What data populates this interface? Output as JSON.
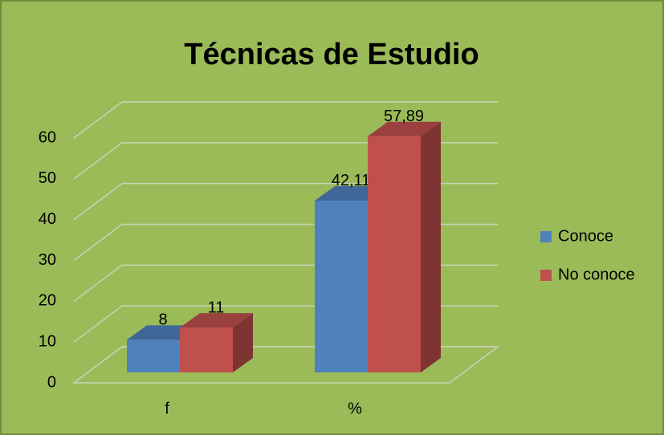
{
  "chart_data": {
    "type": "bar3d",
    "title": "Técnicas de Estudio",
    "categories": [
      "f",
      "%"
    ],
    "series": [
      {
        "name": "Conoce",
        "color": "#4f81bd",
        "values": [
          8,
          42.11
        ],
        "value_labels": [
          "8",
          "42,11"
        ]
      },
      {
        "name": "No conoce",
        "color": "#c0504d",
        "values": [
          11,
          57.89
        ],
        "value_labels": [
          "11",
          "57,89"
        ]
      }
    ],
    "ylim": [
      0,
      60
    ],
    "yticks": [
      0,
      10,
      20,
      30,
      40,
      50,
      60
    ],
    "grid": true,
    "legend": "right"
  }
}
